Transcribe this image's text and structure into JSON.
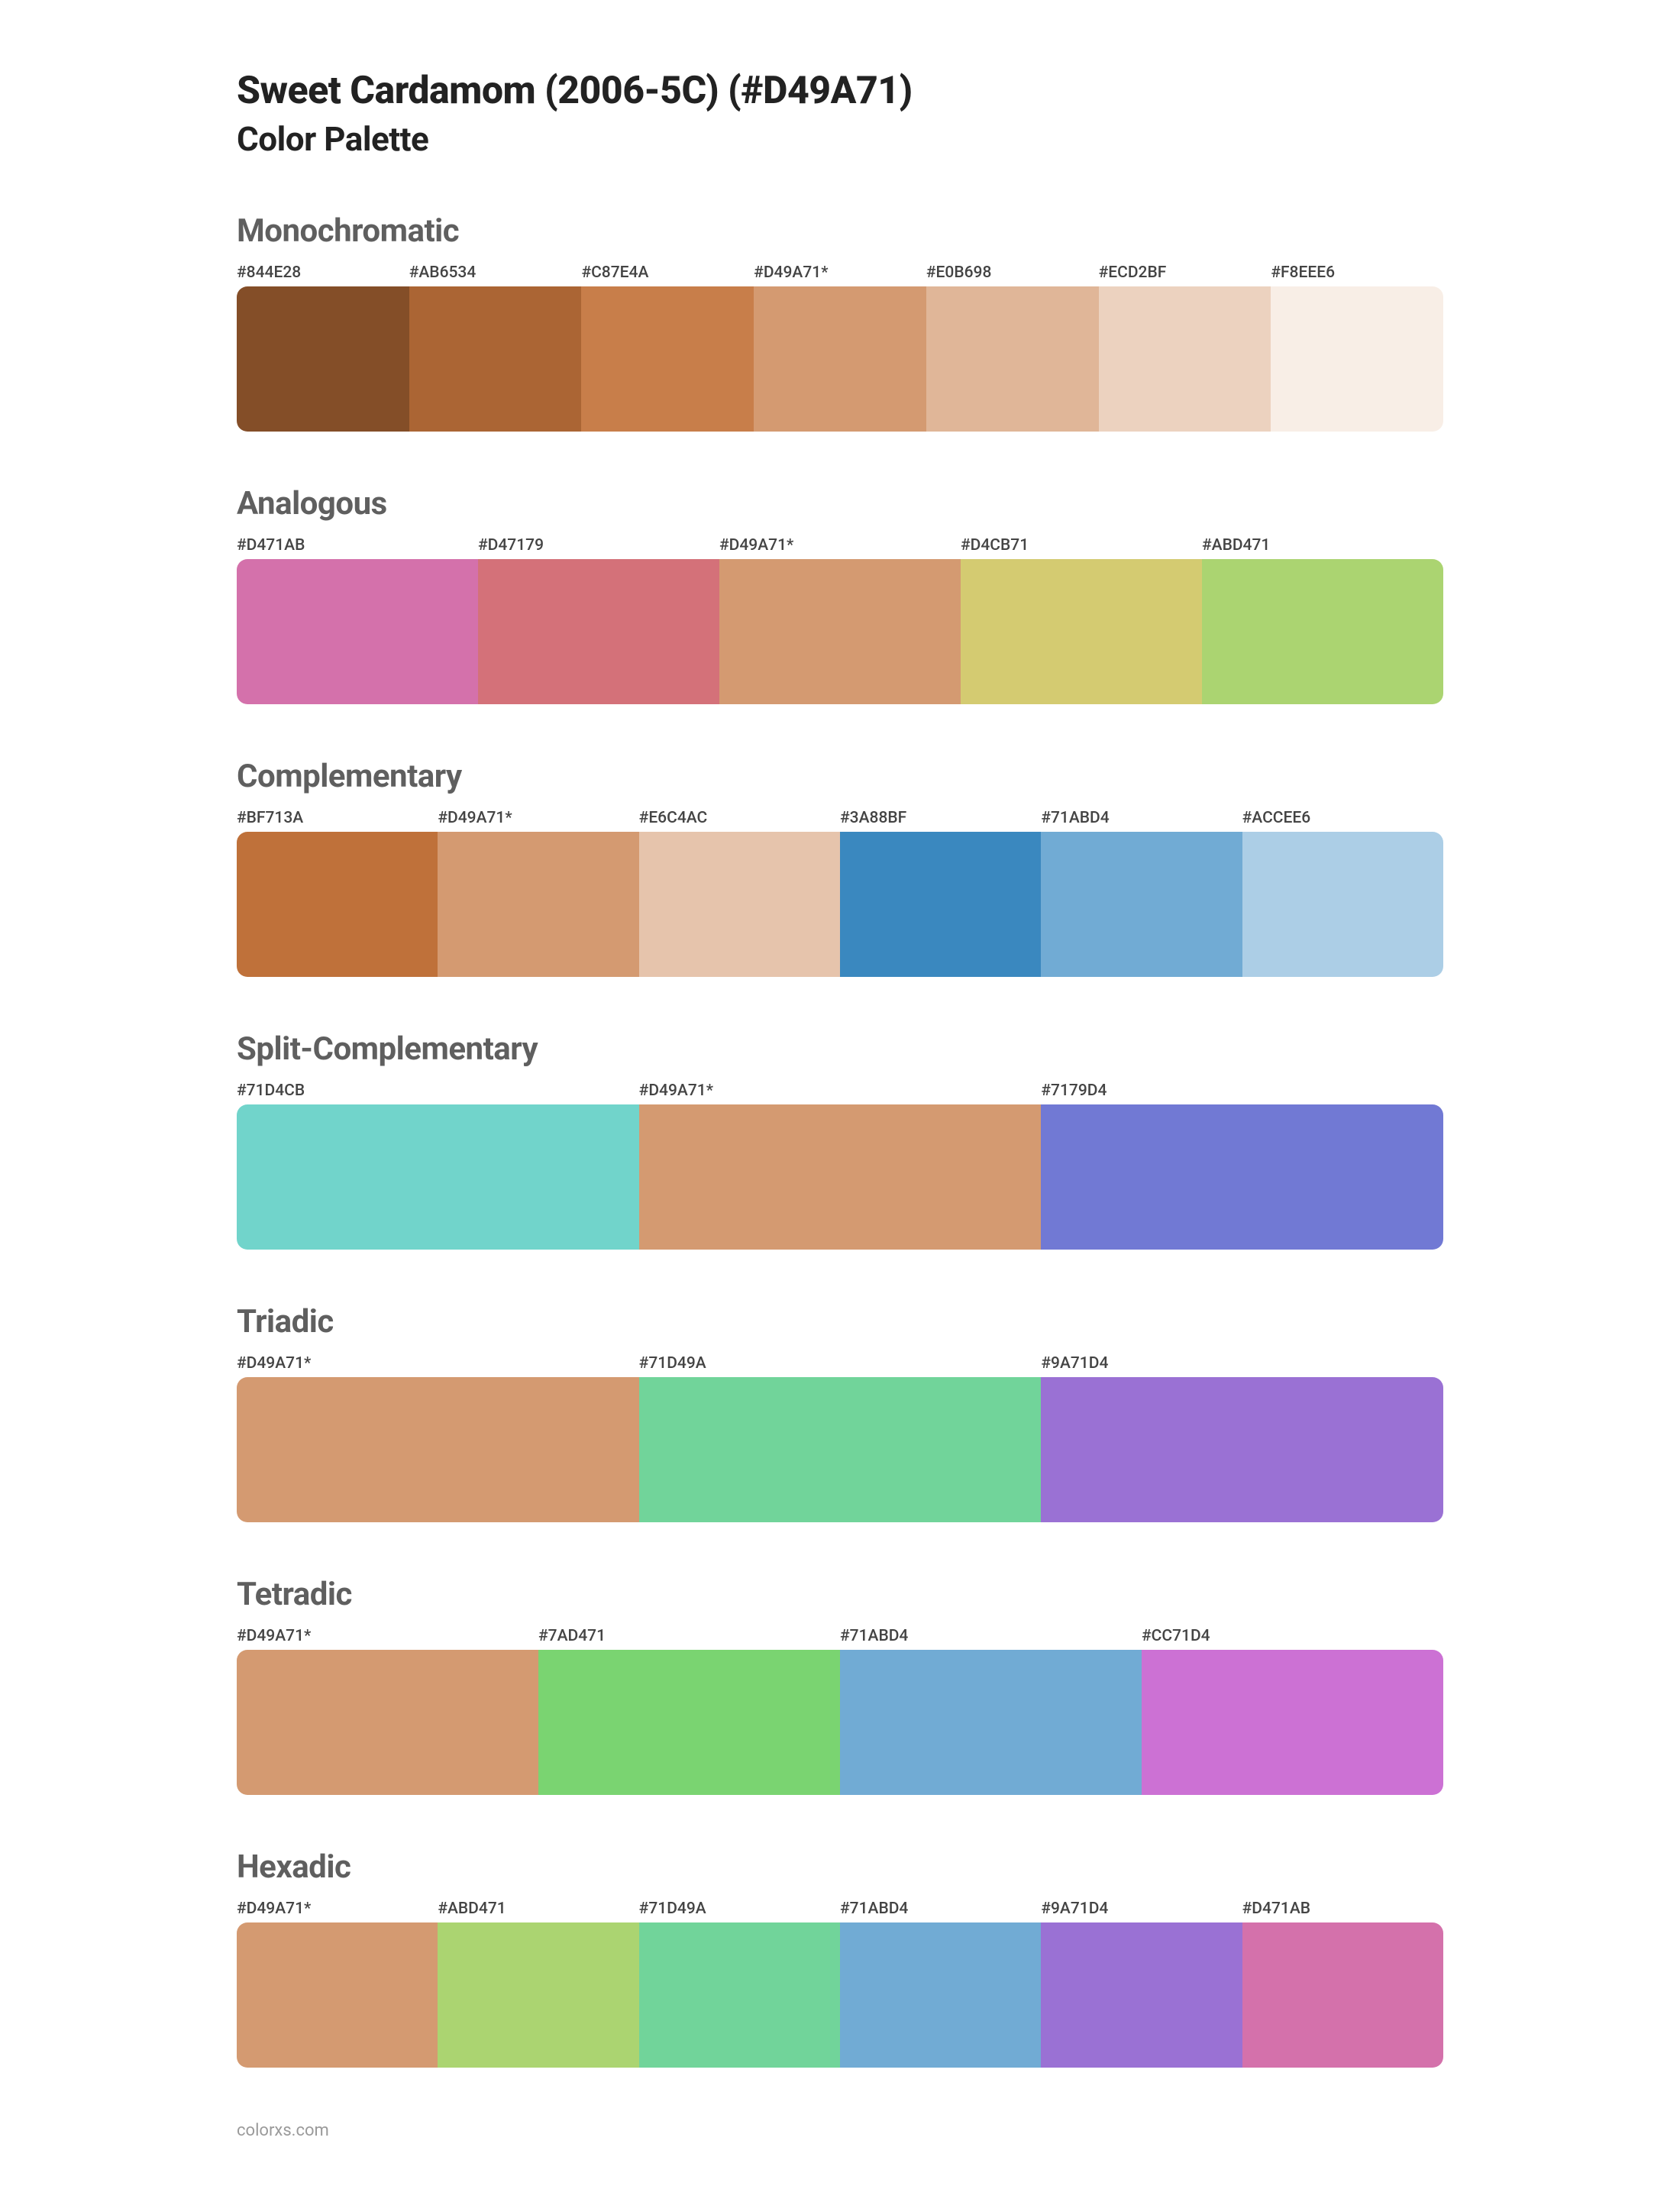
{
  "title": "Sweet Cardamom (2006-5C) (#D49A71)",
  "subtitle": "Color Palette",
  "footer": "colorxs.com",
  "sections": [
    {
      "name": "Monochromatic",
      "swatches": [
        {
          "label": "#844E28",
          "color": "#844E28"
        },
        {
          "label": "#AB6534",
          "color": "#AB6534"
        },
        {
          "label": "#C87E4A",
          "color": "#C87E4A"
        },
        {
          "label": "#D49A71*",
          "color": "#D49A71"
        },
        {
          "label": "#E0B698",
          "color": "#E0B698"
        },
        {
          "label": "#ECD2BF",
          "color": "#ECD2BF"
        },
        {
          "label": "#F8EEE6",
          "color": "#F8EEE6"
        }
      ]
    },
    {
      "name": "Analogous",
      "swatches": [
        {
          "label": "#D471AB",
          "color": "#D471AB"
        },
        {
          "label": "#D47179",
          "color": "#D47179"
        },
        {
          "label": "#D49A71*",
          "color": "#D49A71"
        },
        {
          "label": "#D4CB71",
          "color": "#D4CB71"
        },
        {
          "label": "#ABD471",
          "color": "#ABD471"
        }
      ]
    },
    {
      "name": "Complementary",
      "swatches": [
        {
          "label": "#BF713A",
          "color": "#BF713A"
        },
        {
          "label": "#D49A71*",
          "color": "#D49A71"
        },
        {
          "label": "#E6C4AC",
          "color": "#E6C4AC"
        },
        {
          "label": "#3A88BF",
          "color": "#3A88BF"
        },
        {
          "label": "#71ABD4",
          "color": "#71ABD4"
        },
        {
          "label": "#ACCEE6",
          "color": "#ACCEE6"
        }
      ]
    },
    {
      "name": "Split-Complementary",
      "swatches": [
        {
          "label": "#71D4CB",
          "color": "#71D4CB"
        },
        {
          "label": "#D49A71*",
          "color": "#D49A71"
        },
        {
          "label": "#7179D4",
          "color": "#7179D4"
        }
      ]
    },
    {
      "name": "Triadic",
      "swatches": [
        {
          "label": "#D49A71*",
          "color": "#D49A71"
        },
        {
          "label": "#71D49A",
          "color": "#71D49A"
        },
        {
          "label": "#9A71D4",
          "color": "#9A71D4"
        }
      ]
    },
    {
      "name": "Tetradic",
      "swatches": [
        {
          "label": "#D49A71*",
          "color": "#D49A71"
        },
        {
          "label": "#7AD471",
          "color": "#7AD471"
        },
        {
          "label": "#71ABD4",
          "color": "#71ABD4"
        },
        {
          "label": "#CC71D4",
          "color": "#CC71D4"
        }
      ]
    },
    {
      "name": "Hexadic",
      "swatches": [
        {
          "label": "#D49A71*",
          "color": "#D49A71"
        },
        {
          "label": "#ABD471",
          "color": "#ABD471"
        },
        {
          "label": "#71D49A",
          "color": "#71D49A"
        },
        {
          "label": "#71ABD4",
          "color": "#71ABD4"
        },
        {
          "label": "#9A71D4",
          "color": "#9A71D4"
        },
        {
          "label": "#D471AB",
          "color": "#D471AB"
        }
      ]
    }
  ]
}
